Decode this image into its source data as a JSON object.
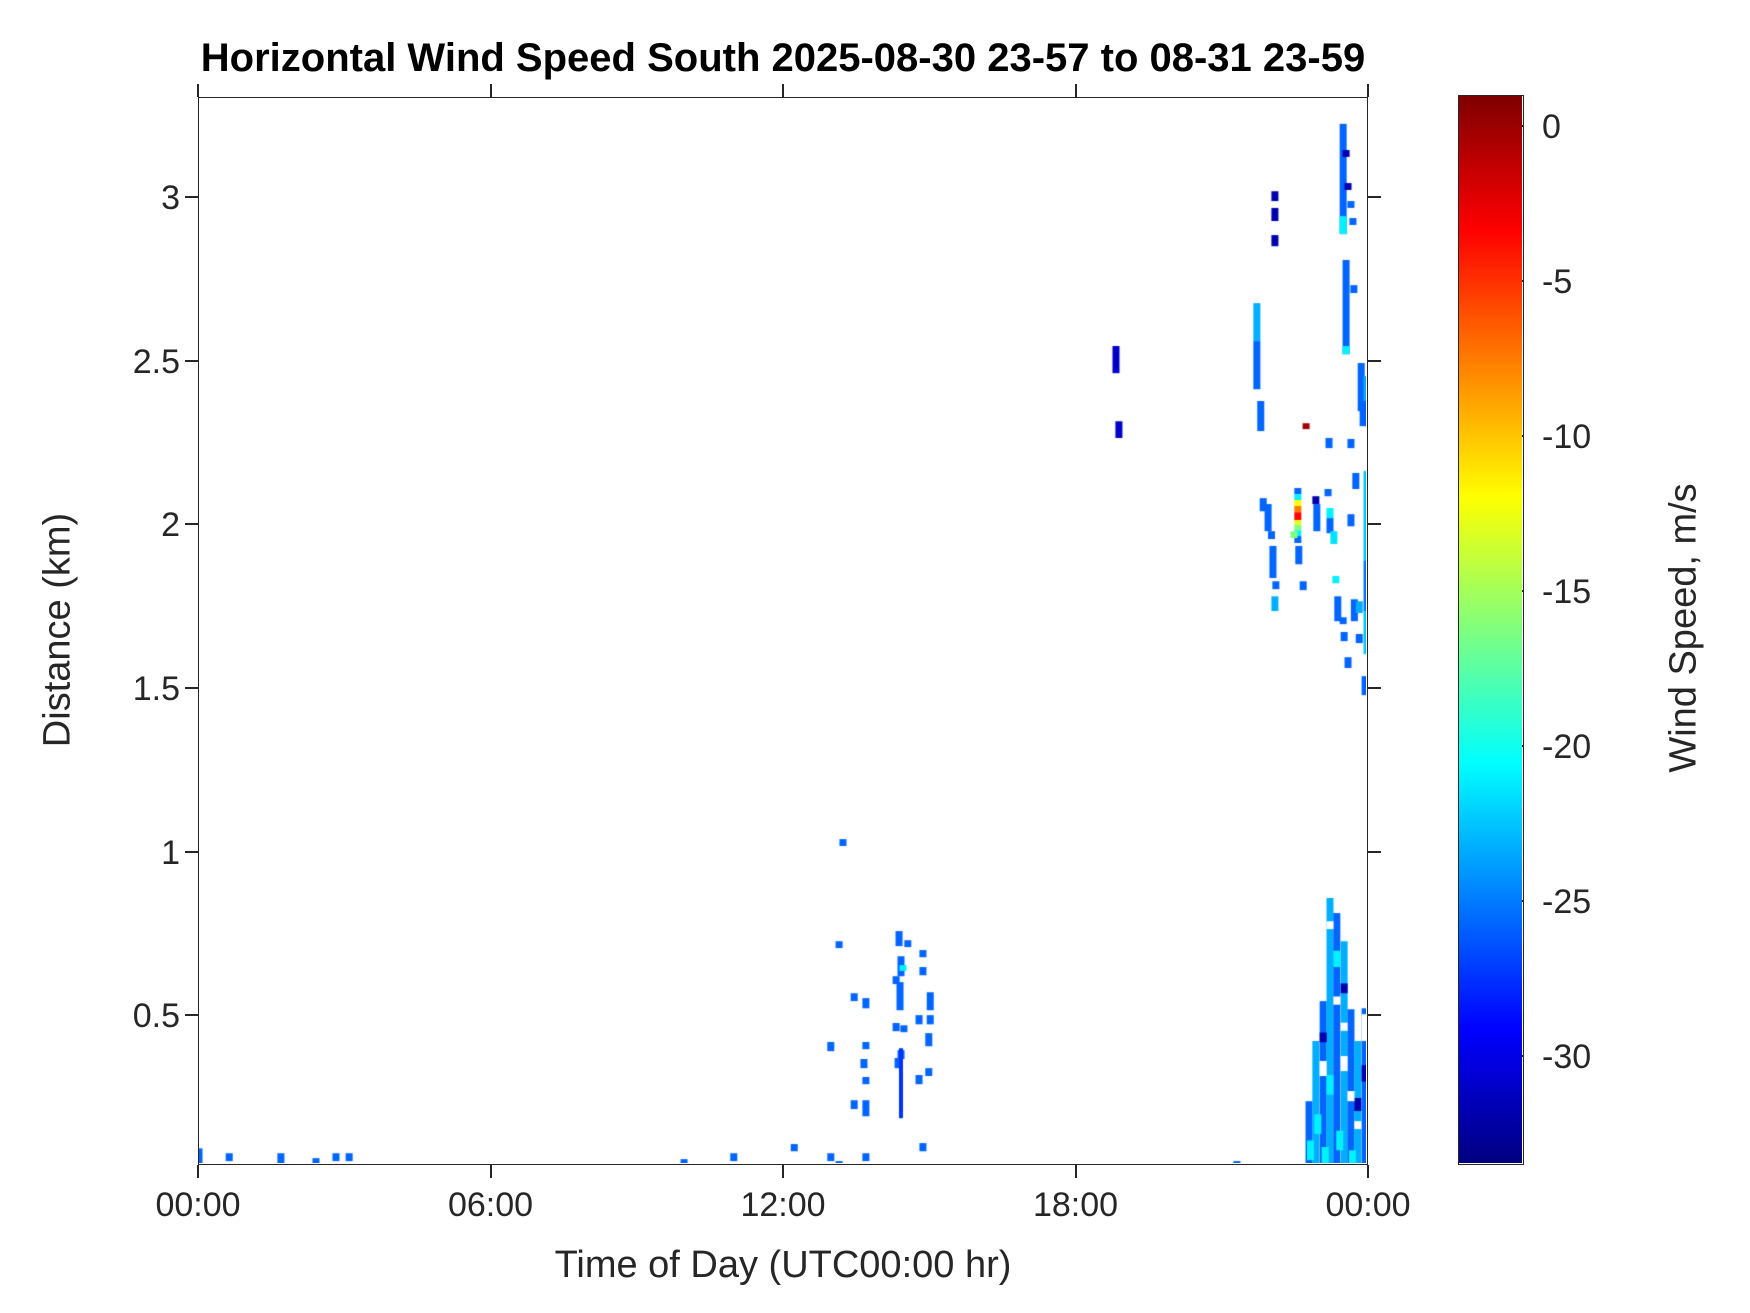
{
  "chart_data": {
    "type": "heatmap",
    "title": "Horizontal Wind Speed South 2025-08-30 23-57 to 08-31 23-59",
    "xlabel": "Time of Day (UTC00:00 hr)",
    "ylabel": "Distance (km)",
    "colorbar_label": "Wind Speed, m/s",
    "colormap": "jet",
    "grid": false,
    "background": "#ffffff",
    "axis_color": "#262626",
    "x_range_hours": [
      0,
      24
    ],
    "y_range_km": [
      0.042,
      3.306
    ],
    "x_ticks": [
      {
        "t": 0,
        "label": "00:00"
      },
      {
        "t": 6,
        "label": "06:00"
      },
      {
        "t": 12,
        "label": "12:00"
      },
      {
        "t": 18,
        "label": "18:00"
      },
      {
        "t": 24,
        "label": "00:00"
      }
    ],
    "y_ticks": [
      {
        "km": 0.5,
        "label": "0.5"
      },
      {
        "km": 1,
        "label": "1"
      },
      {
        "km": 1.5,
        "label": "1.5"
      },
      {
        "km": 2,
        "label": "2"
      },
      {
        "km": 2.5,
        "label": "2.5"
      },
      {
        "km": 3,
        "label": "3"
      }
    ],
    "colorbar": {
      "vmin": -33.5,
      "vmax": 1,
      "ticks": [
        {
          "v": 0,
          "label": "0"
        },
        {
          "v": -5,
          "label": "-5"
        },
        {
          "v": -10,
          "label": "-10"
        },
        {
          "v": -15,
          "label": "-15"
        },
        {
          "v": -20,
          "label": "-20"
        },
        {
          "v": -25,
          "label": "-25"
        },
        {
          "v": -30,
          "label": "-30"
        }
      ]
    },
    "segments_format": "[time_hours, km_top, km_bottom, wind_speed_mps, optional_px_width]",
    "segments": [
      [
        0.0,
        0.096,
        0.042,
        -25.8
      ],
      [
        0.62,
        0.081,
        0.057,
        -25.8
      ],
      [
        1.68,
        0.081,
        0.035,
        -25.8
      ],
      [
        2.4,
        0.066,
        0.035,
        -25.8
      ],
      [
        2.81,
        0.081,
        0.057,
        -25.8
      ],
      [
        3.08,
        0.081,
        0.057,
        -25.8
      ],
      [
        9.95,
        0.063,
        0.035,
        -25.8
      ],
      [
        10.97,
        0.081,
        0.057,
        -25.8
      ],
      [
        12.21,
        0.109,
        0.087,
        -25.8
      ],
      [
        12.96,
        0.081,
        0.057,
        -25.8
      ],
      [
        13.13,
        0.057,
        0.039,
        -25.8
      ],
      [
        13.68,
        0.081,
        0.057,
        -25.8
      ],
      [
        14.85,
        0.112,
        0.087,
        -25.8
      ],
      [
        14.85,
        0.051,
        0.032,
        -25.8
      ],
      [
        21.29,
        0.057,
        0.035,
        -25.8
      ],
      [
        13.21,
        1.041,
        1.02,
        -25.8
      ],
      [
        13.13,
        0.729,
        0.708,
        -25.8
      ],
      [
        14.36,
        0.76,
        0.714,
        -25.8
      ],
      [
        14.54,
        0.732,
        0.711,
        -25.8
      ],
      [
        14.85,
        0.702,
        0.68,
        -25.8
      ],
      [
        14.4,
        0.683,
        0.622,
        -25.8
      ],
      [
        14.44,
        0.656,
        0.638,
        -21
      ],
      [
        14.3,
        0.622,
        0.598,
        -25.8
      ],
      [
        14.85,
        0.65,
        0.625,
        -25.8
      ],
      [
        13.44,
        0.57,
        0.546,
        -25.8
      ],
      [
        13.68,
        0.555,
        0.524,
        -25.8
      ],
      [
        14.38,
        0.604,
        0.518,
        -25.8
      ],
      [
        15.0,
        0.573,
        0.518,
        -25.8
      ],
      [
        14.77,
        0.503,
        0.475,
        -25.8
      ],
      [
        15.0,
        0.503,
        0.475,
        -25.8
      ],
      [
        14.3,
        0.479,
        0.454,
        -25.8
      ],
      [
        14.46,
        0.472,
        0.451,
        -25.8
      ],
      [
        12.96,
        0.421,
        0.393,
        -25.8
      ],
      [
        13.68,
        0.421,
        0.399,
        -25.8
      ],
      [
        14.97,
        0.448,
        0.408,
        -25.8
      ],
      [
        14.4,
        0.396,
        0.369,
        -25.8
      ],
      [
        13.64,
        0.369,
        0.341,
        -25.8
      ],
      [
        14.34,
        0.372,
        0.341,
        -25.8
      ],
      [
        14.97,
        0.341,
        0.317,
        -25.8
      ],
      [
        14.77,
        0.32,
        0.292,
        -25.8
      ],
      [
        13.68,
        0.314,
        0.292,
        -25.8
      ],
      [
        13.44,
        0.243,
        0.216,
        -25.8
      ],
      [
        13.68,
        0.243,
        0.194,
        -25.8
      ],
      [
        14.4,
        0.402,
        0.188,
        -27.5,
        4
      ],
      [
        23.47,
        3.227,
        2.89,
        -25.8
      ],
      [
        23.53,
        3.147,
        3.126,
        -32
      ],
      [
        23.57,
        3.046,
        3.025,
        -32
      ],
      [
        23.47,
        2.945,
        2.89,
        -21
      ],
      [
        23.63,
        2.991,
        2.97,
        -25.8
      ],
      [
        23.67,
        2.939,
        2.918,
        -25.8
      ],
      [
        22.07,
        3.021,
        2.991,
        -32
      ],
      [
        22.07,
        2.97,
        2.93,
        -32
      ],
      [
        22.07,
        2.887,
        2.853,
        -32
      ],
      [
        23.53,
        2.811,
        2.523,
        -25.8
      ],
      [
        23.53,
        2.548,
        2.523,
        -21
      ],
      [
        23.69,
        2.734,
        2.71,
        -25.8
      ],
      [
        21.7,
        2.679,
        2.563,
        -23.3
      ],
      [
        21.7,
        2.563,
        2.416,
        -25.8
      ],
      [
        18.81,
        2.548,
        2.465,
        -31
      ],
      [
        18.87,
        2.318,
        2.267,
        -31
      ],
      [
        23.84,
        2.496,
        2.349,
        -25.8
      ],
      [
        23.96,
        2.456,
        2.38,
        -23.3
      ],
      [
        21.78,
        2.38,
        2.288,
        -25.8
      ],
      [
        22.71,
        2.312,
        2.294,
        -0.2
      ],
      [
        23.18,
        2.267,
        2.236,
        -25.8
      ],
      [
        23.63,
        2.264,
        2.236,
        -25.8
      ],
      [
        23.88,
        2.38,
        2.303,
        -25.8
      ],
      [
        23.96,
        2.166,
        1.891,
        -22.5
      ],
      [
        23.96,
        1.891,
        1.738,
        -25.2
      ],
      [
        23.96,
        1.738,
        1.606,
        -22.5
      ],
      [
        23.73,
        2.16,
        2.111,
        -25.8
      ],
      [
        23.63,
        2.034,
        1.997,
        -25.8
      ],
      [
        22.54,
        2.114,
        2.095,
        -25.8
      ],
      [
        22.54,
        2.095,
        2.077,
        -21
      ],
      [
        22.54,
        2.077,
        2.059,
        -12
      ],
      [
        22.54,
        2.059,
        2.04,
        -7.5
      ],
      [
        22.54,
        2.04,
        2.016,
        -3.5
      ],
      [
        22.54,
        2.016,
        2.001,
        -13
      ],
      [
        22.54,
        2.001,
        1.985,
        -16.2
      ],
      [
        22.54,
        1.985,
        1.967,
        -21
      ],
      [
        22.54,
        1.967,
        1.946,
        -25.8
      ],
      [
        22.91,
        2.089,
        2.065,
        -32
      ],
      [
        22.93,
        2.065,
        1.982,
        -25.8
      ],
      [
        23.16,
        2.111,
        2.089,
        -25.8
      ],
      [
        23.2,
        2.053,
        2.022,
        -21
      ],
      [
        23.2,
        2.022,
        1.976,
        -25.8
      ],
      [
        23.28,
        1.982,
        1.943,
        -21.5
      ],
      [
        21.83,
        2.083,
        2.043,
        -25.8
      ],
      [
        21.93,
        2.065,
        1.982,
        -25.8
      ],
      [
        22.0,
        1.982,
        1.958,
        -25.8
      ],
      [
        22.03,
        1.937,
        1.839,
        -25.8
      ],
      [
        22.09,
        1.829,
        1.805,
        -25.8
      ],
      [
        22.46,
        1.982,
        1.961,
        -16.2
      ],
      [
        22.56,
        1.937,
        1.881,
        -25.8
      ],
      [
        22.65,
        1.829,
        1.802,
        -25.8
      ],
      [
        22.07,
        1.783,
        1.738,
        -23.3
      ],
      [
        23.32,
        1.845,
        1.823,
        -21
      ],
      [
        23.36,
        1.783,
        1.707,
        -25.8
      ],
      [
        23.47,
        1.719,
        1.698,
        -25.8
      ],
      [
        23.7,
        1.774,
        1.707,
        -25.8
      ],
      [
        23.8,
        1.768,
        1.732,
        -23.3
      ],
      [
        23.49,
        1.674,
        1.646,
        -25.8
      ],
      [
        23.8,
        1.668,
        1.64,
        -25.8
      ],
      [
        23.57,
        1.597,
        1.564,
        -25.8
      ],
      [
        23.92,
        1.539,
        1.481,
        -25.8
      ],
      [
        22.77,
        0.24,
        0.04,
        -25.8
      ],
      [
        22.91,
        0.424,
        0.04,
        -23.3
      ],
      [
        23.06,
        0.546,
        0.04,
        -25.8
      ],
      [
        23.2,
        0.861,
        0.04,
        -23.3
      ],
      [
        23.34,
        0.815,
        0.04,
        -25.8
      ],
      [
        23.49,
        0.729,
        0.04,
        -23.3
      ],
      [
        23.63,
        0.521,
        0.04,
        -25.8
      ],
      [
        23.77,
        0.424,
        0.04,
        -23.3
      ],
      [
        23.92,
        0.524,
        0.04,
        -25.8
      ],
      [
        22.8,
        0.12,
        0.06,
        -21
      ],
      [
        23.1,
        0.1,
        0.04,
        -21
      ],
      [
        23.4,
        0.15,
        0.09,
        -21
      ],
      [
        23.66,
        0.09,
        0.04,
        -21
      ],
      [
        23.2,
        0.32,
        0.26,
        -21
      ],
      [
        23.34,
        0.7,
        0.65,
        -21
      ],
      [
        22.95,
        0.2,
        0.14,
        -21
      ],
      [
        23.06,
        0.45,
        0.42,
        -32
      ],
      [
        23.49,
        0.6,
        0.57,
        -32
      ],
      [
        23.92,
        0.35,
        0.3,
        -32
      ],
      [
        23.77,
        0.25,
        0.21,
        -32
      ]
    ],
    "white_gaps": [
      [
        23.2,
        0.79,
        0.766
      ],
      [
        23.06,
        0.363,
        0.317
      ],
      [
        23.49,
        0.378,
        0.332
      ],
      [
        23.63,
        0.271,
        0.24
      ],
      [
        23.77,
        0.179,
        0.155
      ],
      [
        23.92,
        0.506,
        0.424
      ],
      [
        23.34,
        0.56,
        0.535
      ],
      [
        23.49,
        0.48,
        0.455
      ]
    ]
  }
}
